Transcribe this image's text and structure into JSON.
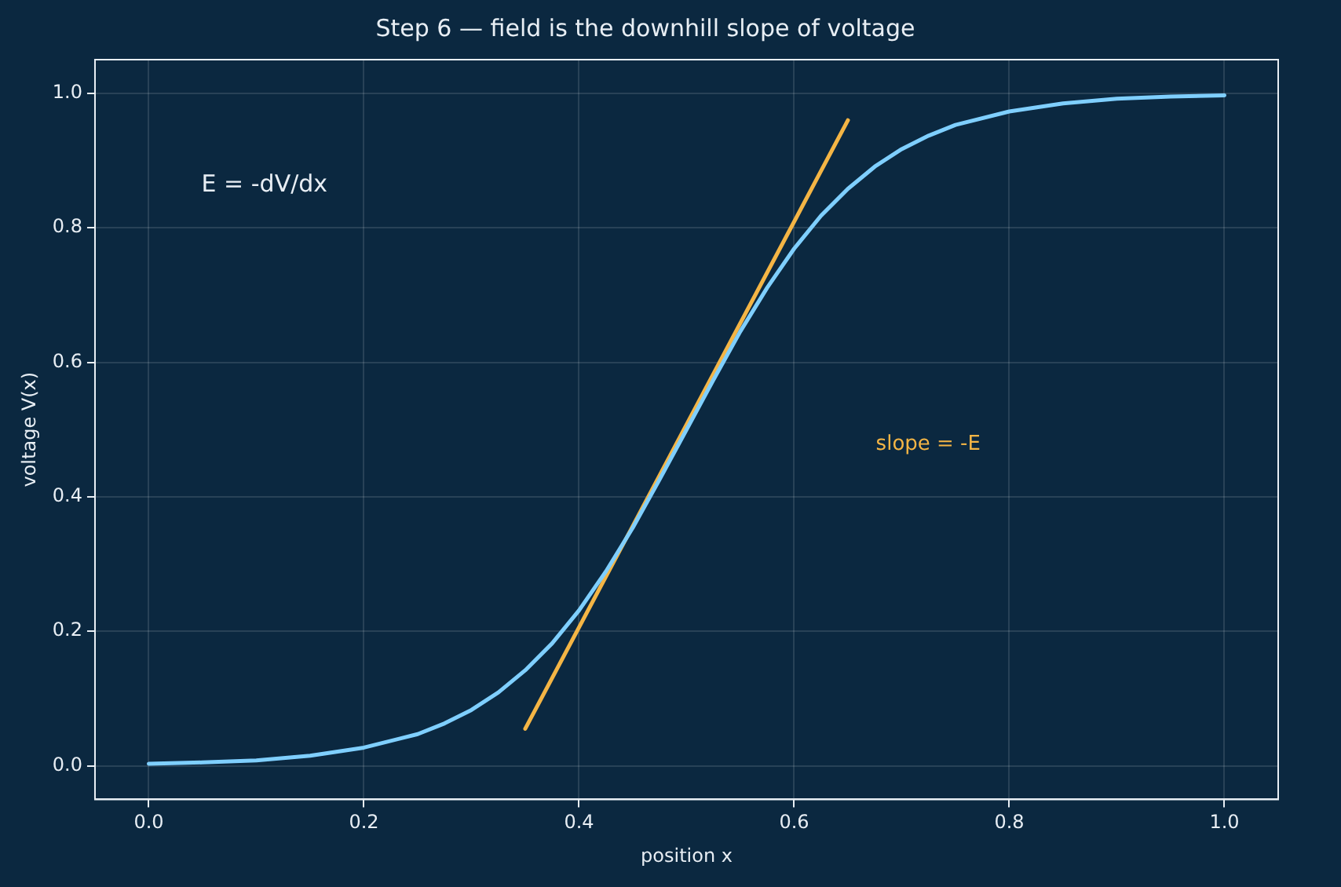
{
  "chart_data": {
    "type": "line",
    "title": "Step 6 — field is the downhill slope of voltage",
    "xlabel": "position x",
    "ylabel": "voltage V(x)",
    "x": [
      0,
      0.05,
      0.1,
      0.15,
      0.2,
      0.25,
      0.275,
      0.3,
      0.325,
      0.35,
      0.375,
      0.4,
      0.425,
      0.45,
      0.475,
      0.5,
      0.525,
      0.55,
      0.575,
      0.6,
      0.625,
      0.65,
      0.675,
      0.7,
      0.725,
      0.75,
      0.8,
      0.85,
      0.9,
      0.95,
      1.0
    ],
    "series": [
      {
        "color": "#7fcfff",
        "values": [
          0.003,
          0.005,
          0.008,
          0.015,
          0.027,
          0.047,
          0.063,
          0.083,
          0.109,
          0.142,
          0.182,
          0.231,
          0.289,
          0.354,
          0.426,
          0.5,
          0.574,
          0.646,
          0.711,
          0.769,
          0.818,
          0.858,
          0.891,
          0.917,
          0.937,
          0.953,
          0.973,
          0.985,
          0.992,
          0.995,
          0.997
        ]
      },
      {
        "type": "line",
        "color": "#f4b545",
        "x": [
          0.35,
          0.65
        ],
        "values": [
          0.055,
          0.96
        ]
      }
    ],
    "xlim": [
      -0.05,
      1.05
    ],
    "ylim": [
      -0.05,
      1.05
    ],
    "xticks": [
      {
        "value": 0,
        "label": "0.0"
      },
      0.2,
      0.4,
      0.6,
      0.8,
      {
        "value": 1,
        "label": "1.0"
      }
    ],
    "yticks": [
      {
        "value": 0,
        "label": "0.0"
      },
      0.2,
      0.4,
      0.6,
      0.8,
      {
        "value": 1,
        "label": "1.0"
      }
    ],
    "grid": true,
    "marker": "none",
    "line_style": "solid",
    "annotations": [
      "E = -dV/dx",
      "slope = -E"
    ]
  }
}
